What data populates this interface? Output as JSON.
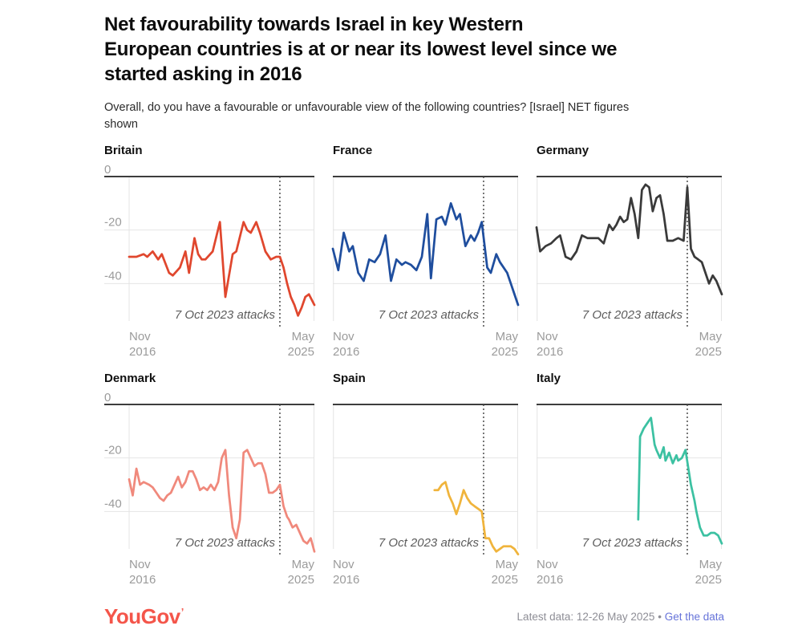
{
  "header": {
    "title": "Net favourability towards Israel in key Western European countries is at or near its lowest level since we started asking in 2016",
    "title_lines": [
      "Net favourability towards Israel in key Western",
      "European countries is at or near its lowest level since we",
      "started asking in 2016"
    ],
    "subtitle": "Overall, do you have a favourable or unfavourable view of the following countries? [Israel] NET figures shown",
    "subtitle_lines": [
      "Overall, do you have a favourable or unfavourable view of the following countries? [Israel] NET figures",
      "shown"
    ]
  },
  "chart_data": {
    "type": "line",
    "x_axis": {
      "start_label_line1": "Nov",
      "start_label_line2": "2016",
      "end_label_line1": "May",
      "end_label_line2": "2025",
      "start_month": 0,
      "end_month": 102
    },
    "y_axis": {
      "ticks": [
        "0",
        "-20",
        "-40"
      ],
      "tick_values": [
        0,
        -20,
        -40
      ],
      "min": -57,
      "max": 0
    },
    "event_line": {
      "month": 83,
      "label": "7 Oct 2023 attacks"
    },
    "panels": [
      {
        "title": "Britain",
        "color": "#e0472e",
        "show_y_labels": true,
        "series": [
          [
            0,
            -30
          ],
          [
            4,
            -30
          ],
          [
            8,
            -29
          ],
          [
            10,
            -30
          ],
          [
            13,
            -28
          ],
          [
            16,
            -31
          ],
          [
            18,
            -29
          ],
          [
            22,
            -36
          ],
          [
            24,
            -37
          ],
          [
            28,
            -34
          ],
          [
            31,
            -28
          ],
          [
            33,
            -36
          ],
          [
            36,
            -23
          ],
          [
            38,
            -29
          ],
          [
            40,
            -31
          ],
          [
            42,
            -31
          ],
          [
            46,
            -28
          ],
          [
            50,
            -17
          ],
          [
            53,
            -45
          ],
          [
            57,
            -29
          ],
          [
            59,
            -28
          ],
          [
            63,
            -17
          ],
          [
            65,
            -20
          ],
          [
            67,
            -21
          ],
          [
            70,
            -17
          ],
          [
            72,
            -21
          ],
          [
            75,
            -28
          ],
          [
            78,
            -31
          ],
          [
            81,
            -30
          ],
          [
            83,
            -30
          ],
          [
            85,
            -34
          ],
          [
            87,
            -40
          ],
          [
            89,
            -45
          ],
          [
            91,
            -48
          ],
          [
            93,
            -52
          ],
          [
            95,
            -49
          ],
          [
            97,
            -45
          ],
          [
            99,
            -44
          ],
          [
            102,
            -48
          ]
        ]
      },
      {
        "title": "France",
        "color": "#1f4e9e",
        "show_y_labels": false,
        "series": [
          [
            0,
            -27
          ],
          [
            3,
            -35
          ],
          [
            6,
            -21
          ],
          [
            9,
            -28
          ],
          [
            11,
            -26
          ],
          [
            14,
            -36
          ],
          [
            17,
            -39
          ],
          [
            20,
            -31
          ],
          [
            23,
            -32
          ],
          [
            26,
            -29
          ],
          [
            29,
            -22
          ],
          [
            32,
            -39
          ],
          [
            35,
            -31
          ],
          [
            38,
            -33
          ],
          [
            40,
            -32
          ],
          [
            43,
            -33
          ],
          [
            46,
            -35
          ],
          [
            49,
            -30
          ],
          [
            52,
            -14
          ],
          [
            54,
            -38
          ],
          [
            57,
            -16
          ],
          [
            60,
            -15
          ],
          [
            62,
            -18
          ],
          [
            65,
            -10
          ],
          [
            68,
            -16
          ],
          [
            70,
            -14
          ],
          [
            73,
            -26
          ],
          [
            76,
            -22
          ],
          [
            78,
            -24
          ],
          [
            80,
            -21
          ],
          [
            82,
            -17
          ],
          [
            85,
            -34
          ],
          [
            87,
            -36
          ],
          [
            90,
            -29
          ],
          [
            92,
            -32
          ],
          [
            94,
            -34
          ],
          [
            96,
            -36
          ],
          [
            99,
            -42
          ],
          [
            102,
            -48
          ]
        ]
      },
      {
        "title": "Germany",
        "color": "#3a3a3a",
        "show_y_labels": false,
        "series": [
          [
            0,
            -19
          ],
          [
            2,
            -28
          ],
          [
            5,
            -26
          ],
          [
            8,
            -25
          ],
          [
            11,
            -23
          ],
          [
            13,
            -22
          ],
          [
            16,
            -30
          ],
          [
            19,
            -31
          ],
          [
            22,
            -28
          ],
          [
            25,
            -22
          ],
          [
            28,
            -23
          ],
          [
            31,
            -23
          ],
          [
            34,
            -23
          ],
          [
            37,
            -25
          ],
          [
            40,
            -18
          ],
          [
            42,
            -20
          ],
          [
            44,
            -18
          ],
          [
            46,
            -15
          ],
          [
            48,
            -17
          ],
          [
            50,
            -16
          ],
          [
            52,
            -8
          ],
          [
            54,
            -14
          ],
          [
            56,
            -23
          ],
          [
            58,
            -5
          ],
          [
            60,
            -3
          ],
          [
            62,
            -4
          ],
          [
            64,
            -13
          ],
          [
            66,
            -8
          ],
          [
            68,
            -7
          ],
          [
            70,
            -14
          ],
          [
            72,
            -24
          ],
          [
            75,
            -24
          ],
          [
            78,
            -23
          ],
          [
            81,
            -24
          ],
          [
            83,
            -4
          ],
          [
            85,
            -27
          ],
          [
            87,
            -30
          ],
          [
            89,
            -31
          ],
          [
            91,
            -32
          ],
          [
            93,
            -36
          ],
          [
            95,
            -40
          ],
          [
            97,
            -37
          ],
          [
            99,
            -39
          ],
          [
            102,
            -44
          ]
        ]
      },
      {
        "title": "Denmark",
        "color": "#f0897c",
        "show_y_labels": true,
        "series": [
          [
            0,
            -28
          ],
          [
            2,
            -34
          ],
          [
            4,
            -24
          ],
          [
            6,
            -30
          ],
          [
            8,
            -29
          ],
          [
            11,
            -30
          ],
          [
            13,
            -31
          ],
          [
            15,
            -33
          ],
          [
            17,
            -35
          ],
          [
            19,
            -36
          ],
          [
            21,
            -34
          ],
          [
            23,
            -33
          ],
          [
            25,
            -30
          ],
          [
            27,
            -27
          ],
          [
            29,
            -31
          ],
          [
            31,
            -29
          ],
          [
            33,
            -25
          ],
          [
            35,
            -25
          ],
          [
            37,
            -28
          ],
          [
            39,
            -32
          ],
          [
            41,
            -31
          ],
          [
            43,
            -32
          ],
          [
            45,
            -30
          ],
          [
            47,
            -32
          ],
          [
            49,
            -29
          ],
          [
            51,
            -20
          ],
          [
            53,
            -17
          ],
          [
            55,
            -34
          ],
          [
            57,
            -46
          ],
          [
            59,
            -50
          ],
          [
            61,
            -43
          ],
          [
            63,
            -18
          ],
          [
            65,
            -17
          ],
          [
            67,
            -20
          ],
          [
            69,
            -23
          ],
          [
            71,
            -22
          ],
          [
            73,
            -22
          ],
          [
            75,
            -26
          ],
          [
            77,
            -33
          ],
          [
            79,
            -33
          ],
          [
            81,
            -32
          ],
          [
            83,
            -30
          ],
          [
            85,
            -38
          ],
          [
            87,
            -42
          ],
          [
            88,
            -43
          ],
          [
            90,
            -46
          ],
          [
            92,
            -45
          ],
          [
            94,
            -48
          ],
          [
            96,
            -51
          ],
          [
            98,
            -52
          ],
          [
            100,
            -50
          ],
          [
            102,
            -55
          ]
        ]
      },
      {
        "title": "Spain",
        "color": "#f0b43c",
        "show_y_labels": false,
        "series": [
          [
            56,
            -32
          ],
          [
            58,
            -32
          ],
          [
            60,
            -30
          ],
          [
            62,
            -29
          ],
          [
            64,
            -34
          ],
          [
            66,
            -37
          ],
          [
            68,
            -41
          ],
          [
            70,
            -37
          ],
          [
            72,
            -32
          ],
          [
            74,
            -35
          ],
          [
            76,
            -37
          ],
          [
            78,
            -38
          ],
          [
            80,
            -39
          ],
          [
            82,
            -40
          ],
          [
            84,
            -50
          ],
          [
            86,
            -50
          ],
          [
            88,
            -53
          ],
          [
            90,
            -55
          ],
          [
            92,
            -54
          ],
          [
            94,
            -53
          ],
          [
            96,
            -53
          ],
          [
            98,
            -53
          ],
          [
            100,
            -54
          ],
          [
            102,
            -56
          ]
        ]
      },
      {
        "title": "Italy",
        "color": "#3cc1a2",
        "show_y_labels": false,
        "series": [
          [
            56,
            -43
          ],
          [
            57,
            -12
          ],
          [
            59,
            -9
          ],
          [
            61,
            -7
          ],
          [
            63,
            -5
          ],
          [
            65,
            -15
          ],
          [
            66,
            -17
          ],
          [
            68,
            -20
          ],
          [
            70,
            -16
          ],
          [
            71,
            -21
          ],
          [
            73,
            -18
          ],
          [
            75,
            -22
          ],
          [
            77,
            -19
          ],
          [
            78,
            -21
          ],
          [
            80,
            -20
          ],
          [
            82,
            -17
          ],
          [
            85,
            -30
          ],
          [
            87,
            -36
          ],
          [
            88,
            -40
          ],
          [
            90,
            -46
          ],
          [
            92,
            -49
          ],
          [
            94,
            -49
          ],
          [
            96,
            -48
          ],
          [
            98,
            -48
          ],
          [
            100,
            -49
          ],
          [
            102,
            -52
          ]
        ]
      }
    ],
    "style": {
      "grid_color": "#e4e4e4",
      "zero_line_color": "#3d3d3d",
      "event_line_color": "#4b4b4b",
      "event_label_color": "#5c5c5c",
      "axis_label_color": "#9b9b9b"
    }
  },
  "footer": {
    "logo": "YouGov",
    "logo_mark": "’",
    "latest": "Latest data: 12-26 May 2025",
    "bullet": "•",
    "link": "Get the data"
  }
}
